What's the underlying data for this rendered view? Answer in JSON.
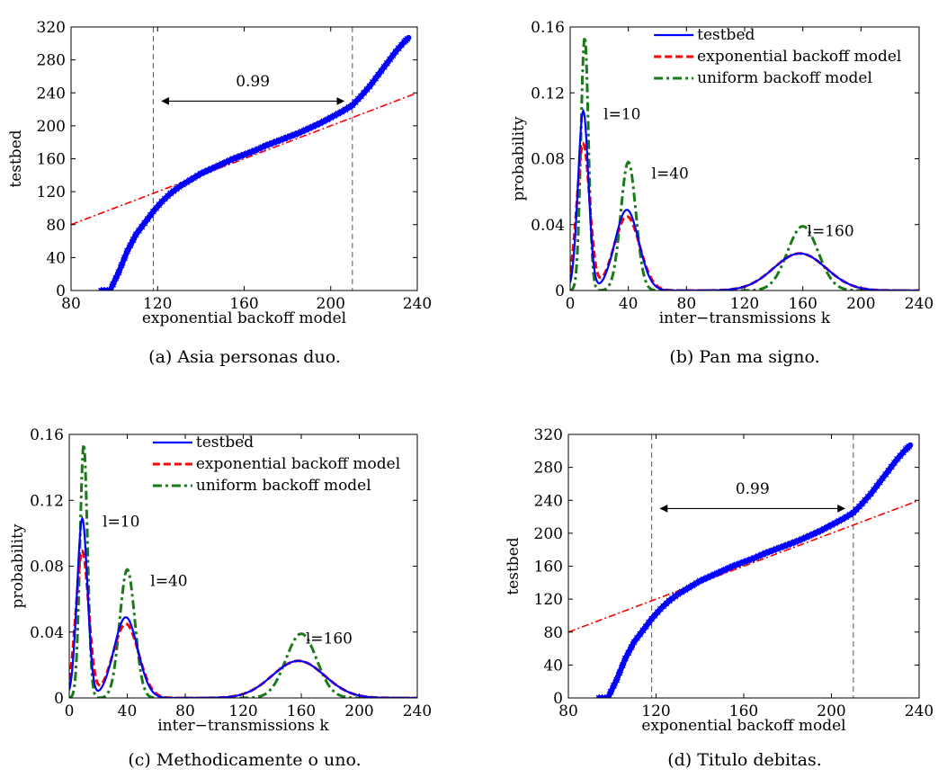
{
  "colors": {
    "testbed": "#0000ff",
    "exponential": "#ff0000",
    "uniform": "#1a7a1a",
    "dashed_vline": "#555555",
    "axis": "#000000"
  },
  "chart_data": [
    {
      "type": "scatter",
      "caption": "(a) Asia personas duo.",
      "xlabel": "exponential backoff model",
      "ylabel": "testbed",
      "xlim": [
        80,
        240
      ],
      "ylim": [
        0,
        320
      ],
      "xticks": [
        80,
        120,
        160,
        200,
        240
      ],
      "yticks": [
        0,
        40,
        80,
        120,
        160,
        200,
        240,
        280,
        320
      ],
      "grid": false,
      "series": [
        {
          "kind": "qq_points",
          "x": [
            94,
            98,
            102,
            106,
            110,
            114,
            118,
            122,
            126,
            130,
            135,
            140,
            145,
            150,
            155,
            160,
            165,
            170,
            175,
            180,
            185,
            190,
            195,
            200,
            205,
            210,
            214,
            218,
            222,
            226,
            230,
            234,
            236
          ],
          "y": [
            0,
            0,
            22,
            48,
            68,
            82,
            96,
            108,
            118,
            126,
            134,
            142,
            148,
            154,
            160,
            165,
            170,
            176,
            181,
            186,
            191,
            197,
            203,
            210,
            217,
            225,
            236,
            248,
            262,
            276,
            290,
            302,
            307
          ]
        },
        {
          "kind": "reference_line",
          "x": [
            80,
            240
          ],
          "y": [
            80,
            240
          ]
        }
      ],
      "vlines": [
        118,
        210
      ],
      "annotation": {
        "text": "0.99",
        "arrow_x": [
          122,
          206
        ],
        "arrow_y": 230,
        "text_x": 164,
        "text_y": 248
      }
    },
    {
      "type": "line",
      "caption": "(b) Pan ma signo.",
      "xlabel": "inter−transmissions k",
      "ylabel": "probability",
      "xlim": [
        0,
        240
      ],
      "ylim": [
        0,
        0.16
      ],
      "xticks": [
        0,
        40,
        80,
        120,
        160,
        200,
        240
      ],
      "yticks": [
        0,
        0.04,
        0.08,
        0.12,
        0.16
      ],
      "ytick_labels": [
        "0",
        "0.04",
        "0.08",
        "0.12",
        "0.16"
      ],
      "grid": false,
      "legend": {
        "placement": "top-right",
        "entries": [
          "testbed",
          "exponential backoff model",
          "uniform backoff model"
        ]
      },
      "series": [
        {
          "name": "testbed",
          "peaks": [
            {
              "mu": 9,
              "sigma": 3.6,
              "amp": 0.109
            },
            {
              "mu": 39,
              "sigma": 8.2,
              "amp": 0.049
            },
            {
              "mu": 158,
              "sigma": 18,
              "amp": 0.0225
            }
          ]
        },
        {
          "name": "exponential backoff model",
          "peaks": [
            {
              "mu": 9,
              "sigma": 4.4,
              "amp": 0.089
            },
            {
              "mu": 39,
              "sigma": 8.8,
              "amp": 0.045
            },
            {
              "mu": 158,
              "sigma": 18,
              "amp": 0.0225
            }
          ]
        },
        {
          "name": "uniform backoff model",
          "peaks": [
            {
              "mu": 10,
              "sigma": 2.6,
              "amp": 0.154
            },
            {
              "mu": 40,
              "sigma": 5.2,
              "amp": 0.078
            },
            {
              "mu": 160,
              "sigma": 10.5,
              "amp": 0.039
            }
          ]
        }
      ],
      "annotations": [
        {
          "text": "l=10",
          "x": 23,
          "y": 0.104
        },
        {
          "text": "l=40",
          "x": 56,
          "y": 0.068
        },
        {
          "text": "l=160",
          "x": 163,
          "y": 0.033
        }
      ]
    },
    {
      "type": "line",
      "caption": "(c) Methodicamente o uno.",
      "xlabel": "inter−transmissions k",
      "ylabel": "probability",
      "xlim": [
        0,
        240
      ],
      "ylim": [
        0,
        0.16
      ],
      "xticks": [
        0,
        40,
        80,
        120,
        160,
        200,
        240
      ],
      "yticks": [
        0,
        0.04,
        0.08,
        0.12,
        0.16
      ],
      "ytick_labels": [
        "0",
        "0.04",
        "0.08",
        "0.12",
        "0.16"
      ],
      "grid": false,
      "legend": {
        "placement": "top-right",
        "entries": [
          "testbed",
          "exponential backoff model",
          "uniform backoff model"
        ]
      },
      "series": [
        {
          "name": "testbed",
          "peaks": [
            {
              "mu": 9,
              "sigma": 3.6,
              "amp": 0.109
            },
            {
              "mu": 39,
              "sigma": 8.2,
              "amp": 0.049
            },
            {
              "mu": 158,
              "sigma": 18,
              "amp": 0.0225
            }
          ]
        },
        {
          "name": "exponential backoff model",
          "peaks": [
            {
              "mu": 9,
              "sigma": 4.4,
              "amp": 0.089
            },
            {
              "mu": 39,
              "sigma": 8.8,
              "amp": 0.045
            },
            {
              "mu": 158,
              "sigma": 18,
              "amp": 0.0225
            }
          ]
        },
        {
          "name": "uniform backoff model",
          "peaks": [
            {
              "mu": 10,
              "sigma": 2.6,
              "amp": 0.154
            },
            {
              "mu": 40,
              "sigma": 5.2,
              "amp": 0.078
            },
            {
              "mu": 160,
              "sigma": 10.5,
              "amp": 0.039
            }
          ]
        }
      ],
      "annotations": [
        {
          "text": "l=10",
          "x": 23,
          "y": 0.104
        },
        {
          "text": "l=40",
          "x": 56,
          "y": 0.068
        },
        {
          "text": "l=160",
          "x": 163,
          "y": 0.033
        }
      ]
    },
    {
      "type": "scatter",
      "caption": "(d) Titulo debitas.",
      "xlabel": "exponential backoff model",
      "ylabel": "testbed",
      "xlim": [
        80,
        240
      ],
      "ylim": [
        0,
        320
      ],
      "xticks": [
        80,
        120,
        160,
        200,
        240
      ],
      "yticks": [
        0,
        40,
        80,
        120,
        160,
        200,
        240,
        280,
        320
      ],
      "grid": false,
      "series": [
        {
          "kind": "qq_points",
          "x": [
            94,
            98,
            102,
            106,
            110,
            114,
            118,
            122,
            126,
            130,
            135,
            140,
            145,
            150,
            155,
            160,
            165,
            170,
            175,
            180,
            185,
            190,
            195,
            200,
            205,
            210,
            214,
            218,
            222,
            226,
            230,
            234,
            236
          ],
          "y": [
            0,
            0,
            22,
            48,
            68,
            82,
            96,
            108,
            118,
            126,
            134,
            142,
            148,
            154,
            160,
            165,
            170,
            176,
            181,
            186,
            191,
            197,
            203,
            210,
            217,
            225,
            236,
            248,
            262,
            276,
            290,
            302,
            307
          ]
        },
        {
          "kind": "reference_line",
          "x": [
            80,
            240
          ],
          "y": [
            80,
            240
          ]
        }
      ],
      "vlines": [
        118,
        210
      ],
      "annotation": {
        "text": "0.99",
        "arrow_x": [
          122,
          206
        ],
        "arrow_y": 230,
        "text_x": 164,
        "text_y": 248
      }
    }
  ]
}
